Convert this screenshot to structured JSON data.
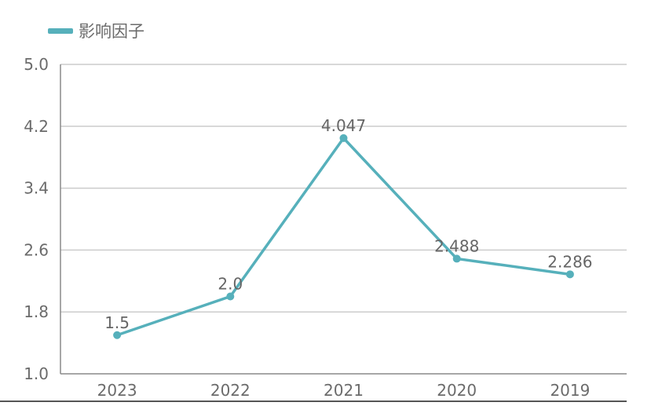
{
  "chart_data": {
    "type": "line",
    "categories": [
      "2023",
      "2022",
      "2021",
      "2020",
      "2019"
    ],
    "series": [
      {
        "name": "影响因子",
        "values": [
          1.5,
          2.0,
          4.047,
          2.488,
          2.286
        ],
        "labels": [
          "1.5",
          "2.0",
          "4.047",
          "2.488",
          "2.286"
        ],
        "color": "#56b0bb"
      }
    ],
    "ylim": [
      1.0,
      5.0
    ],
    "yticks": [
      "1.0",
      "1.8",
      "2.6",
      "3.4",
      "4.2",
      "5.0"
    ],
    "grid": true,
    "legend": "top-left",
    "colors": {
      "line": "#56b0bb",
      "grid": "#cccccc",
      "axis": "#8a8a8a",
      "text": "#6b6b6b",
      "label": "#666666"
    }
  }
}
